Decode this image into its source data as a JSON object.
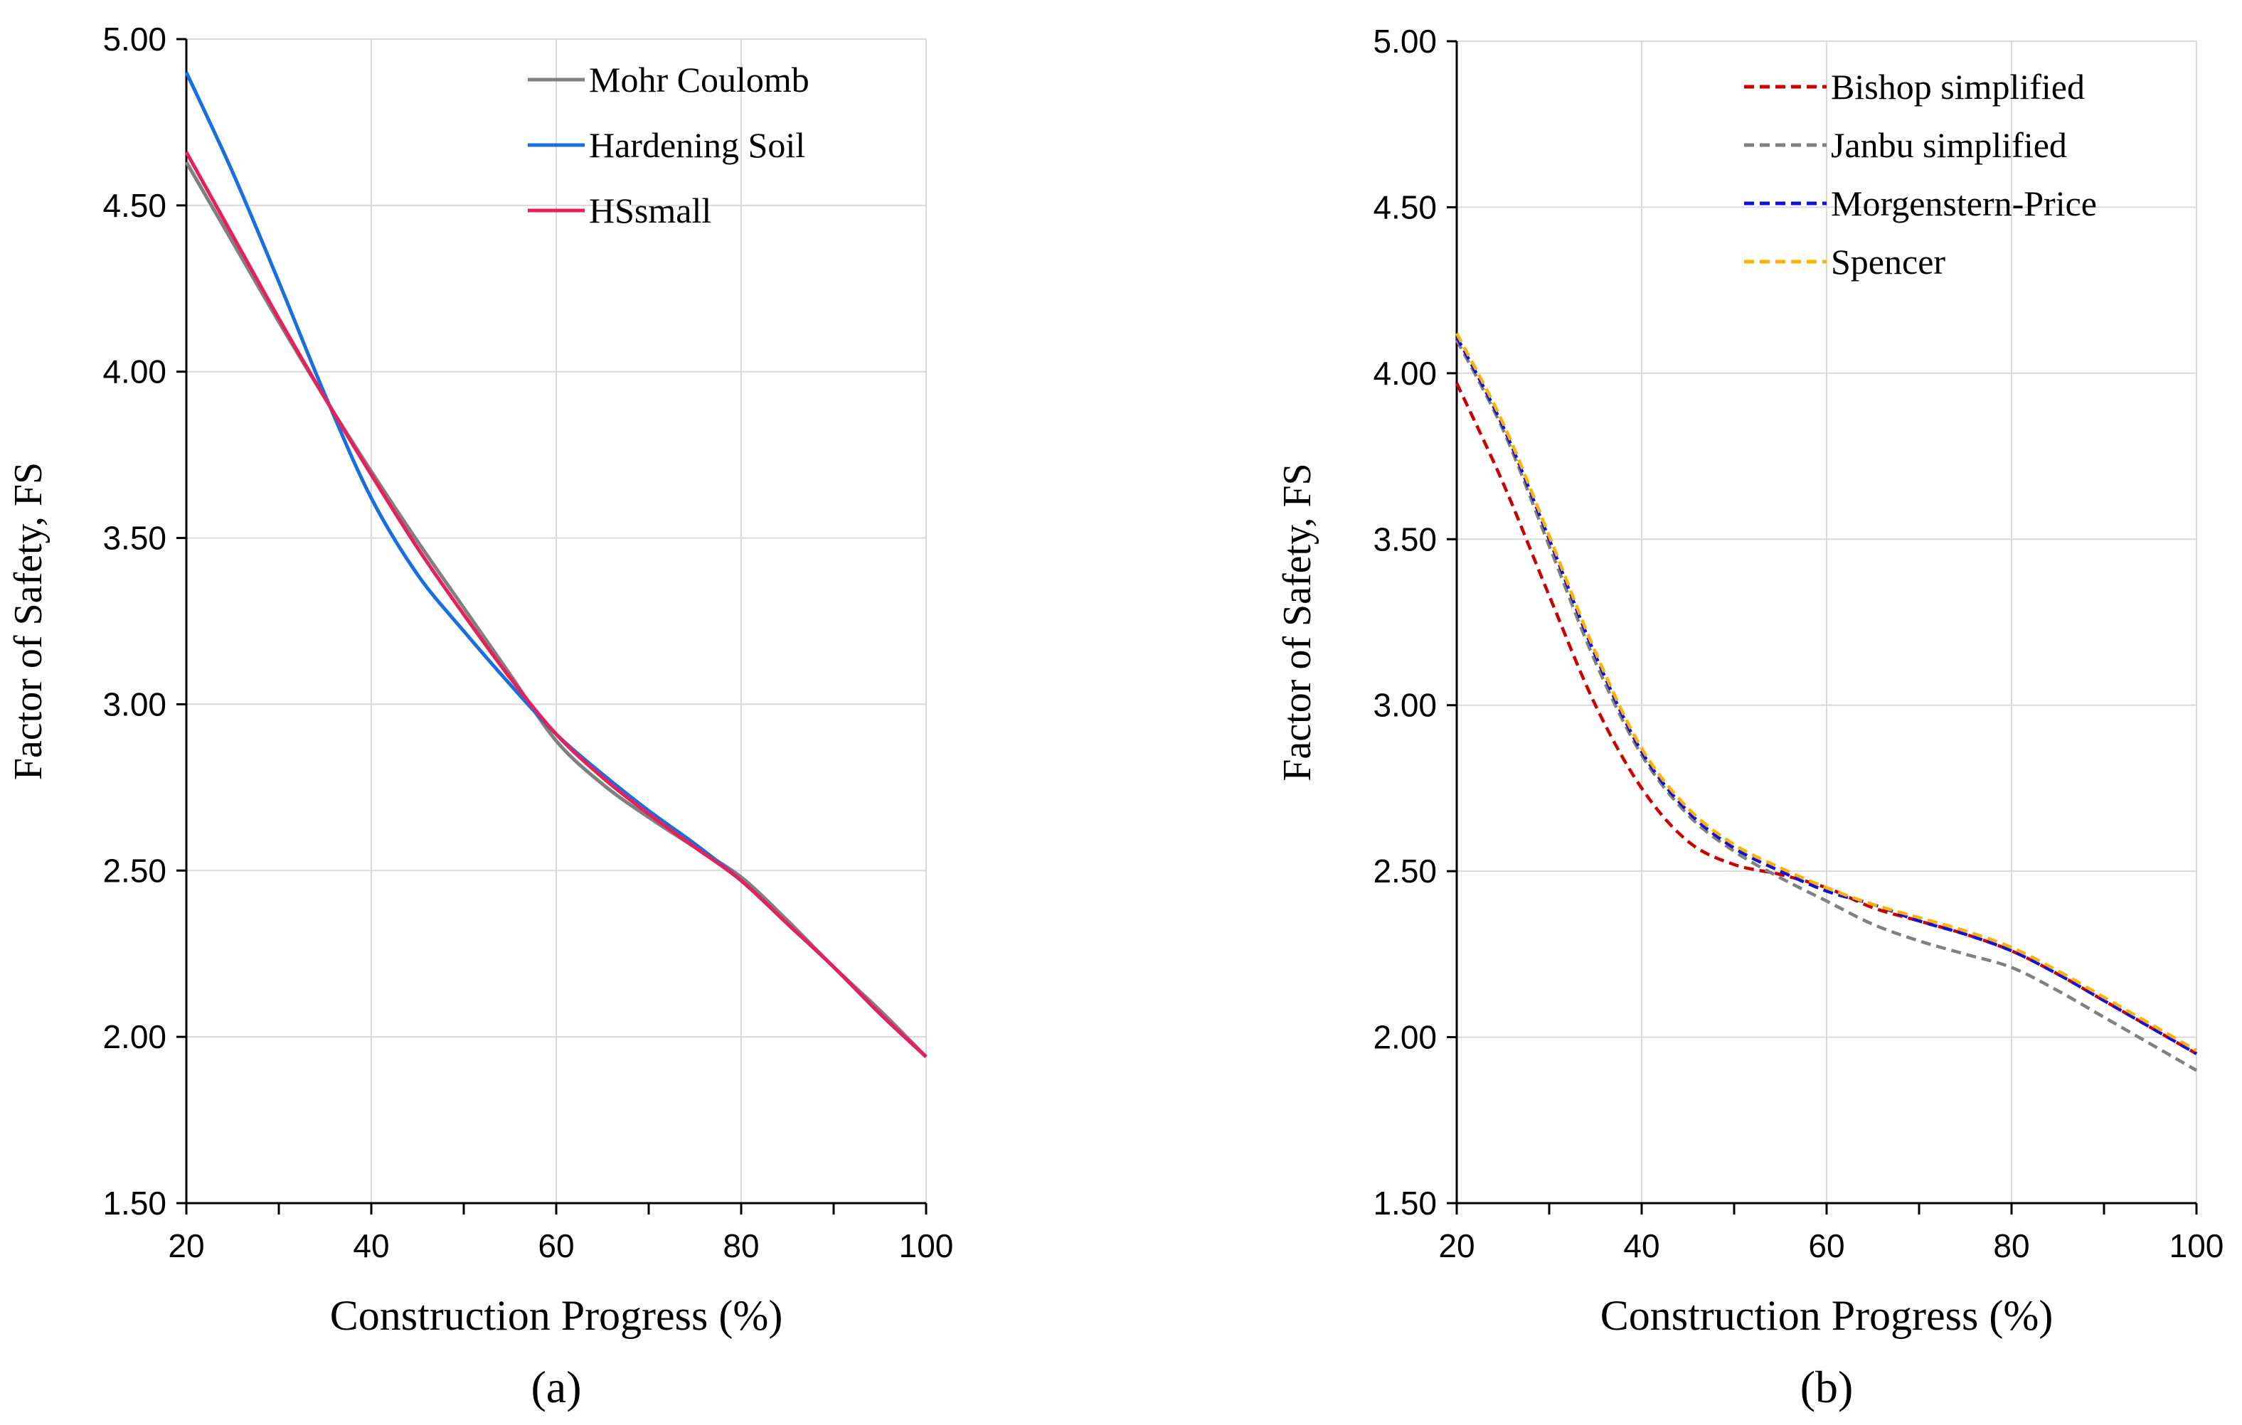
{
  "chart_data": [
    {
      "type": "line",
      "panel_label": "(a)",
      "xlabel": "Construction Progress (%)",
      "ylabel": "Factor of Safety, FS",
      "xlim": [
        20,
        100
      ],
      "ylim": [
        1.5,
        5.0
      ],
      "x_ticks": [
        20,
        40,
        60,
        80,
        100
      ],
      "x_tick_labels": [
        "20",
        "40",
        "60",
        "80",
        "100"
      ],
      "x_minor_ticks": [
        30,
        50,
        70,
        90
      ],
      "y_ticks": [
        1.5,
        2.0,
        2.5,
        3.0,
        3.5,
        4.0,
        4.5,
        5.0
      ],
      "y_tick_labels": [
        "1.50",
        "2.00",
        "2.50",
        "3.00",
        "3.50",
        "4.00",
        "4.50",
        "5.00"
      ],
      "grid": true,
      "legend_position": "top-right",
      "series": [
        {
          "name": "Mohr Coulomb",
          "color": "#808080",
          "dash": "solid",
          "points": [
            [
              20,
              4.63
            ],
            [
              25,
              4.39
            ],
            [
              30,
              4.15
            ],
            [
              35,
              3.92
            ],
            [
              40,
              3.7
            ],
            [
              45,
              3.49
            ],
            [
              50,
              3.29
            ],
            [
              55,
              3.09
            ],
            [
              60,
              2.89
            ],
            [
              65,
              2.76
            ],
            [
              70,
              2.66
            ],
            [
              75,
              2.57
            ],
            [
              80,
              2.48
            ],
            [
              85,
              2.35
            ],
            [
              90,
              2.21
            ],
            [
              95,
              2.08
            ],
            [
              100,
              1.94
            ]
          ]
        },
        {
          "name": "Hardening Soil",
          "color": "#1a6fe0",
          "dash": "solid",
          "points": [
            [
              20,
              4.9
            ],
            [
              25,
              4.6
            ],
            [
              30,
              4.27
            ],
            [
              35,
              3.93
            ],
            [
              40,
              3.62
            ],
            [
              45,
              3.39
            ],
            [
              50,
              3.22
            ],
            [
              55,
              3.06
            ],
            [
              60,
              2.91
            ],
            [
              65,
              2.79
            ],
            [
              70,
              2.68
            ],
            [
              75,
              2.58
            ],
            [
              80,
              2.47
            ],
            [
              85,
              2.34
            ],
            [
              90,
              2.21
            ],
            [
              95,
              2.07
            ],
            [
              100,
              1.94
            ]
          ]
        },
        {
          "name": "HSsmall",
          "color": "#e8205a",
          "dash": "solid",
          "points": [
            [
              20,
              4.66
            ],
            [
              25,
              4.41
            ],
            [
              30,
              4.16
            ],
            [
              35,
              3.92
            ],
            [
              40,
              3.69
            ],
            [
              45,
              3.47
            ],
            [
              50,
              3.27
            ],
            [
              55,
              3.08
            ],
            [
              60,
              2.91
            ],
            [
              65,
              2.78
            ],
            [
              70,
              2.67
            ],
            [
              75,
              2.57
            ],
            [
              80,
              2.47
            ],
            [
              85,
              2.34
            ],
            [
              90,
              2.21
            ],
            [
              95,
              2.07
            ],
            [
              100,
              1.94
            ]
          ]
        }
      ]
    },
    {
      "type": "line",
      "panel_label": "(b)",
      "xlabel": "Construction Progress (%)",
      "ylabel": "Factor of Safety, FS",
      "xlim": [
        20,
        100
      ],
      "ylim": [
        1.5,
        5.0
      ],
      "x_ticks": [
        20,
        40,
        60,
        80,
        100
      ],
      "x_tick_labels": [
        "20",
        "40",
        "60",
        "80",
        "100"
      ],
      "x_minor_ticks": [
        30,
        50,
        70,
        90
      ],
      "y_ticks": [
        1.5,
        2.0,
        2.5,
        3.0,
        3.5,
        4.0,
        4.5,
        5.0
      ],
      "y_tick_labels": [
        "1.50",
        "2.00",
        "2.50",
        "3.00",
        "3.50",
        "4.00",
        "4.50",
        "5.00"
      ],
      "grid": true,
      "legend_position": "top-right",
      "series": [
        {
          "name": "Bishop simplified",
          "color": "#cc0000",
          "dash": "dashed",
          "points": [
            [
              20,
              3.97
            ],
            [
              25,
              3.67
            ],
            [
              30,
              3.33
            ],
            [
              35,
              3.0
            ],
            [
              40,
              2.75
            ],
            [
              45,
              2.59
            ],
            [
              50,
              2.52
            ],
            [
              55,
              2.49
            ],
            [
              60,
              2.45
            ],
            [
              65,
              2.39
            ],
            [
              70,
              2.35
            ],
            [
              75,
              2.31
            ],
            [
              80,
              2.26
            ],
            [
              85,
              2.19
            ],
            [
              90,
              2.11
            ],
            [
              95,
              2.03
            ],
            [
              100,
              1.95
            ]
          ]
        },
        {
          "name": "Janbu simplified",
          "color": "#808080",
          "dash": "dashed",
          "points": [
            [
              20,
              4.1
            ],
            [
              25,
              3.83
            ],
            [
              30,
              3.48
            ],
            [
              35,
              3.13
            ],
            [
              40,
              2.85
            ],
            [
              45,
              2.67
            ],
            [
              50,
              2.56
            ],
            [
              55,
              2.48
            ],
            [
              60,
              2.41
            ],
            [
              65,
              2.34
            ],
            [
              70,
              2.29
            ],
            [
              75,
              2.25
            ],
            [
              80,
              2.21
            ],
            [
              85,
              2.14
            ],
            [
              90,
              2.06
            ],
            [
              95,
              1.98
            ],
            [
              100,
              1.9
            ]
          ]
        },
        {
          "name": "Morgenstern-Price",
          "color": "#1010dd",
          "dash": "dashed",
          "points": [
            [
              20,
              4.11
            ],
            [
              25,
              3.84
            ],
            [
              30,
              3.5
            ],
            [
              35,
              3.15
            ],
            [
              40,
              2.86
            ],
            [
              45,
              2.68
            ],
            [
              50,
              2.57
            ],
            [
              55,
              2.5
            ],
            [
              60,
              2.44
            ],
            [
              65,
              2.4
            ],
            [
              70,
              2.35
            ],
            [
              75,
              2.31
            ],
            [
              80,
              2.26
            ],
            [
              85,
              2.19
            ],
            [
              90,
              2.11
            ],
            [
              95,
              2.03
            ],
            [
              100,
              1.95
            ]
          ]
        },
        {
          "name": "Spencer",
          "color": "#ffb000",
          "dash": "dashed",
          "points": [
            [
              20,
              4.12
            ],
            [
              25,
              3.85
            ],
            [
              30,
              3.51
            ],
            [
              35,
              3.16
            ],
            [
              40,
              2.87
            ],
            [
              45,
              2.69
            ],
            [
              50,
              2.58
            ],
            [
              55,
              2.51
            ],
            [
              60,
              2.45
            ],
            [
              65,
              2.4
            ],
            [
              70,
              2.36
            ],
            [
              75,
              2.32
            ],
            [
              80,
              2.27
            ],
            [
              85,
              2.2
            ],
            [
              90,
              2.12
            ],
            [
              95,
              2.04
            ],
            [
              100,
              1.96
            ]
          ]
        }
      ]
    }
  ]
}
